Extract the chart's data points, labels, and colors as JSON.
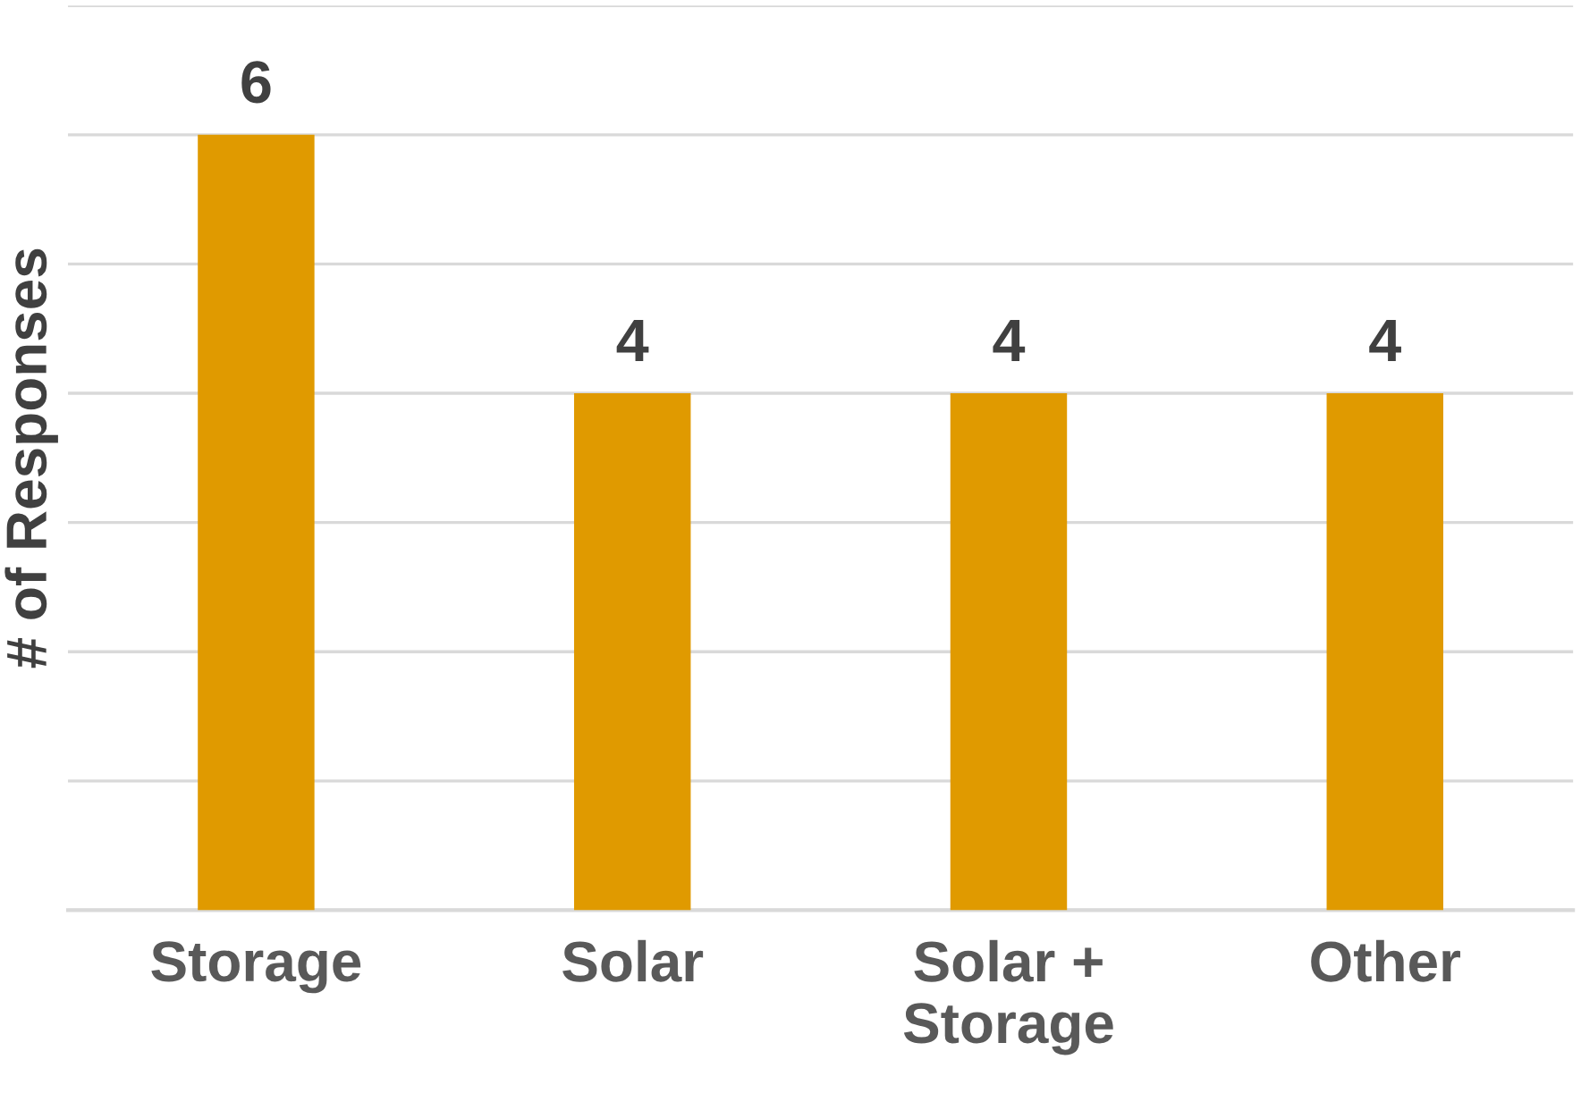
{
  "chart_data": {
    "type": "bar",
    "ylabel": "# of Responses",
    "categories": [
      "Storage",
      "Solar",
      "Solar +\nStorage",
      "Other"
    ],
    "values": [
      6,
      4,
      4,
      4
    ],
    "color": "#e09a00",
    "ylim": [
      0,
      7
    ],
    "yticks": [
      {
        "value": 0,
        "label": null
      },
      {
        "value": 1,
        "label": null
      },
      {
        "value": 2,
        "label": null
      },
      {
        "value": 3,
        "label": null
      },
      {
        "value": 4,
        "label": null
      },
      {
        "value": 5,
        "label": null
      },
      {
        "value": 6,
        "label": null
      },
      {
        "value": 7,
        "label": null
      }
    ],
    "tick_labels": "x",
    "grid": "y",
    "data_labels": true
  }
}
